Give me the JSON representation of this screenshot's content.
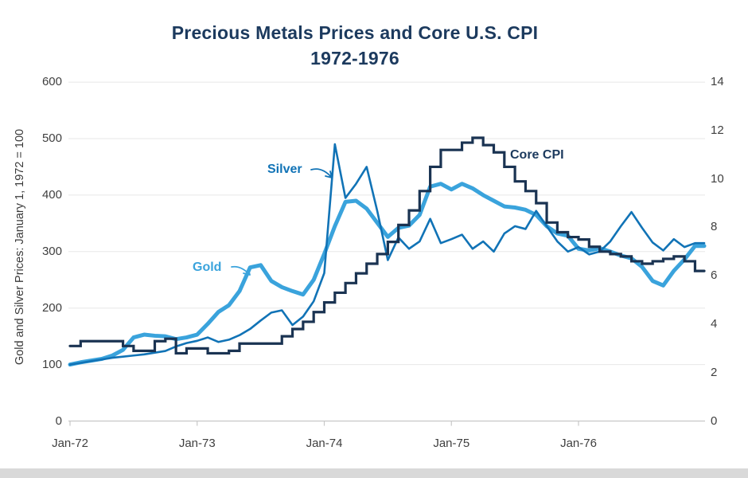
{
  "title": {
    "line1": "Precious Metals Prices and Core U.S. CPI",
    "line2": "1972-1976"
  },
  "axes": {
    "left": {
      "label": "Gold and Silver Prices: January 1, 1972 = 100",
      "ticks": [
        0,
        100,
        200,
        300,
        400,
        500,
        600
      ],
      "range": [
        0,
        600
      ]
    },
    "right": {
      "ticks": [
        0,
        2,
        4,
        6,
        8,
        10,
        12,
        14
      ],
      "range": [
        0,
        14
      ]
    },
    "x": {
      "tick_labels": [
        "Jan-72",
        "Jan-73",
        "Jan-74",
        "Jan-75",
        "Jan-76"
      ]
    }
  },
  "annotations": {
    "silver_label": "Silver",
    "gold_label": "Gold",
    "core_cpi_label": "Core CPI"
  },
  "colors": {
    "gold": "#3AA3DC",
    "silver": "#1173B6",
    "core_cpi": "#1A3352",
    "title": "#1C3A5E",
    "tick_text": "#3F3F3F",
    "gridline": "#E7E7E7",
    "axis_line": "#C8C8C8",
    "bottom_strip": "#D9D9D9"
  },
  "chart_data": {
    "type": "line",
    "title": "Precious Metals Prices and Core U.S. CPI 1972-1976",
    "x_start": "1972-01",
    "x_interval": "monthly",
    "x_tick_labels": [
      "Jan-72",
      "Jan-73",
      "Jan-74",
      "Jan-75",
      "Jan-76"
    ],
    "grid": true,
    "legend": "inline-annotations",
    "left_axis_range": [
      0,
      600
    ],
    "right_axis_range": [
      0,
      14
    ],
    "series": [
      {
        "name": "Gold",
        "axis": "left",
        "style": "line",
        "color": "#3AA3DC",
        "line_width": 5,
        "values": [
          100,
          104,
          107,
          110,
          116,
          126,
          148,
          153,
          151,
          150,
          145,
          148,
          153,
          172,
          193,
          205,
          230,
          272,
          276,
          248,
          237,
          230,
          224,
          250,
          296,
          345,
          388,
          390,
          376,
          351,
          326,
          342,
          346,
          365,
          415,
          420,
          410,
          420,
          412,
          400,
          390,
          380,
          378,
          374,
          365,
          345,
          332,
          328,
          305,
          302,
          306,
          300,
          293,
          288,
          273,
          248,
          240,
          266,
          286,
          310
        ]
      },
      {
        "name": "Silver",
        "axis": "left",
        "style": "line",
        "color": "#1173B6",
        "line_width": 2.6,
        "values": [
          100,
          103,
          106,
          109,
          112,
          114,
          116,
          118,
          121,
          124,
          132,
          138,
          142,
          148,
          140,
          144,
          152,
          163,
          178,
          192,
          196,
          170,
          185,
          212,
          262,
          490,
          395,
          420,
          450,
          372,
          285,
          325,
          305,
          318,
          358,
          315,
          322,
          330,
          305,
          318,
          300,
          332,
          345,
          340,
          372,
          345,
          318,
          300,
          308,
          295,
          300,
          318,
          345,
          370,
          342,
          316,
          302,
          322,
          308,
          315
        ]
      },
      {
        "name": "Core CPI",
        "axis": "right",
        "style": "step",
        "color": "#1A3352",
        "line_width": 3.2,
        "values": [
          3.1,
          3.3,
          3.3,
          3.3,
          3.3,
          3.1,
          2.9,
          2.9,
          3.3,
          3.4,
          2.8,
          3.0,
          3.0,
          2.8,
          2.8,
          2.9,
          3.2,
          3.2,
          3.2,
          3.2,
          3.5,
          3.8,
          4.1,
          4.5,
          4.9,
          5.3,
          5.7,
          6.1,
          6.5,
          6.9,
          7.4,
          8.1,
          8.7,
          9.5,
          10.5,
          11.2,
          11.2,
          11.5,
          11.7,
          11.4,
          11.1,
          10.5,
          9.9,
          9.5,
          9.0,
          8.2,
          7.8,
          7.6,
          7.5,
          7.2,
          7.0,
          6.9,
          6.8,
          6.6,
          6.5,
          6.6,
          6.7,
          6.8,
          6.6,
          6.2
        ]
      }
    ]
  }
}
